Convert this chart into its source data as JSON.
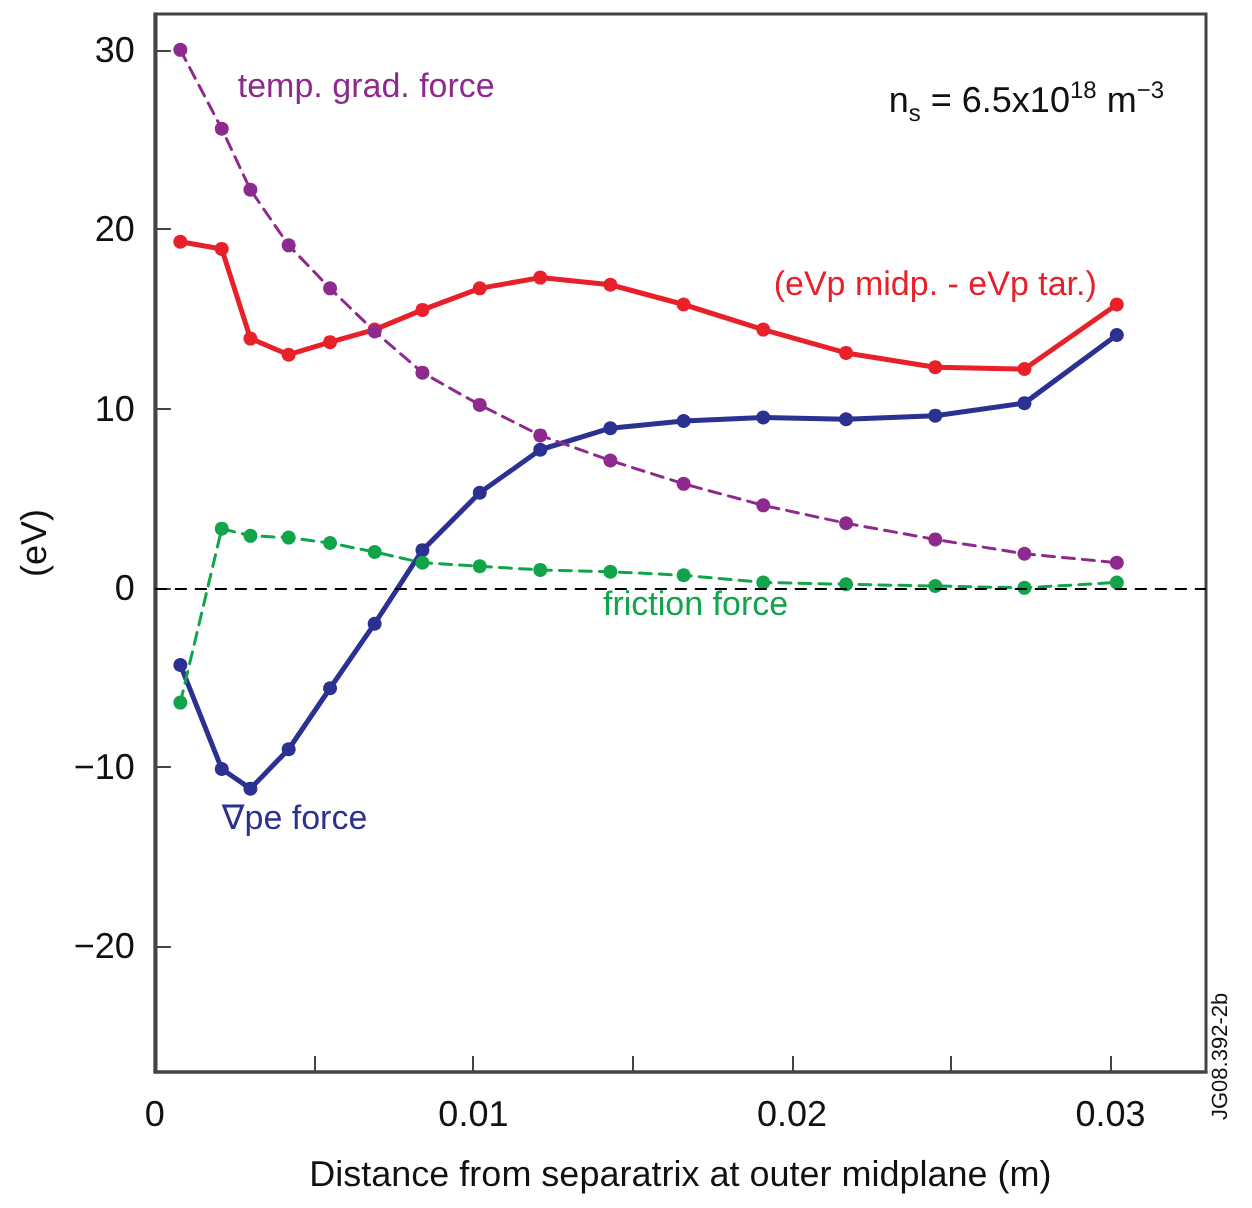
{
  "chart_data": {
    "type": "line",
    "xlabel": "Distance from separatrix at outer midplane (m)",
    "ylabel": "(eV)",
    "x": [
      0.0008,
      0.0021,
      0.003,
      0.0042,
      0.0055,
      0.0069,
      0.0084,
      0.0102,
      0.0121,
      0.0143,
      0.0166,
      0.0191,
      0.0217,
      0.0245,
      0.0273,
      0.0302
    ],
    "series": [
      {
        "name": "temp. grad. force",
        "color": "#8e2a8e",
        "line_style": "dashed",
        "values": [
          30.0,
          25.6,
          22.2,
          19.1,
          16.7,
          14.3,
          12.0,
          10.2,
          8.5,
          7.1,
          5.8,
          4.6,
          3.6,
          2.7,
          1.9,
          1.4
        ]
      },
      {
        "name": "(eVp midp. - eVp tar.)",
        "color": "#e8202a",
        "line_style": "solid",
        "values": [
          19.3,
          18.9,
          13.9,
          13.0,
          13.7,
          14.4,
          15.5,
          16.7,
          17.3,
          16.9,
          15.8,
          14.4,
          13.1,
          12.3,
          12.2,
          15.8
        ]
      },
      {
        "name": "friction force",
        "color": "#12a44a",
        "line_style": "dashed",
        "values": [
          -6.4,
          3.3,
          2.9,
          2.8,
          2.5,
          2.0,
          1.4,
          1.2,
          1.0,
          0.9,
          0.7,
          0.3,
          0.2,
          0.1,
          0.0,
          0.3
        ]
      },
      {
        "name": "∇pe force",
        "color": "#2b3190",
        "line_style": "solid",
        "values": [
          -4.3,
          -10.1,
          -11.2,
          -9.0,
          -5.6,
          -2.0,
          2.1,
          5.3,
          7.7,
          8.9,
          9.3,
          9.5,
          9.4,
          9.6,
          10.3,
          14.1
        ]
      }
    ],
    "marker": "circle",
    "grid": false,
    "legend": false,
    "xlim": [
      0,
      0.033
    ],
    "xticks": [
      0,
      {
        "value": 0.005,
        "label": null
      },
      0.01,
      {
        "value": 0.015,
        "label": null
      },
      0.02,
      {
        "value": 0.025,
        "label": null
      },
      0.03
    ],
    "ylim": [
      -27,
      32
    ],
    "yticks": [
      {
        "value": -20,
        "label": "−20"
      },
      {
        "value": -10,
        "label": "−10"
      },
      0,
      10,
      20,
      30
    ],
    "ref_lines": [
      {
        "axis": "y",
        "value": 0,
        "label": null,
        "color": "#000000",
        "line_style": "dashed"
      }
    ],
    "annotations": [
      "n$_{s}$ = 6.5x10$^{18}$ m$^{−3}$",
      "JG08.392-2b"
    ]
  }
}
